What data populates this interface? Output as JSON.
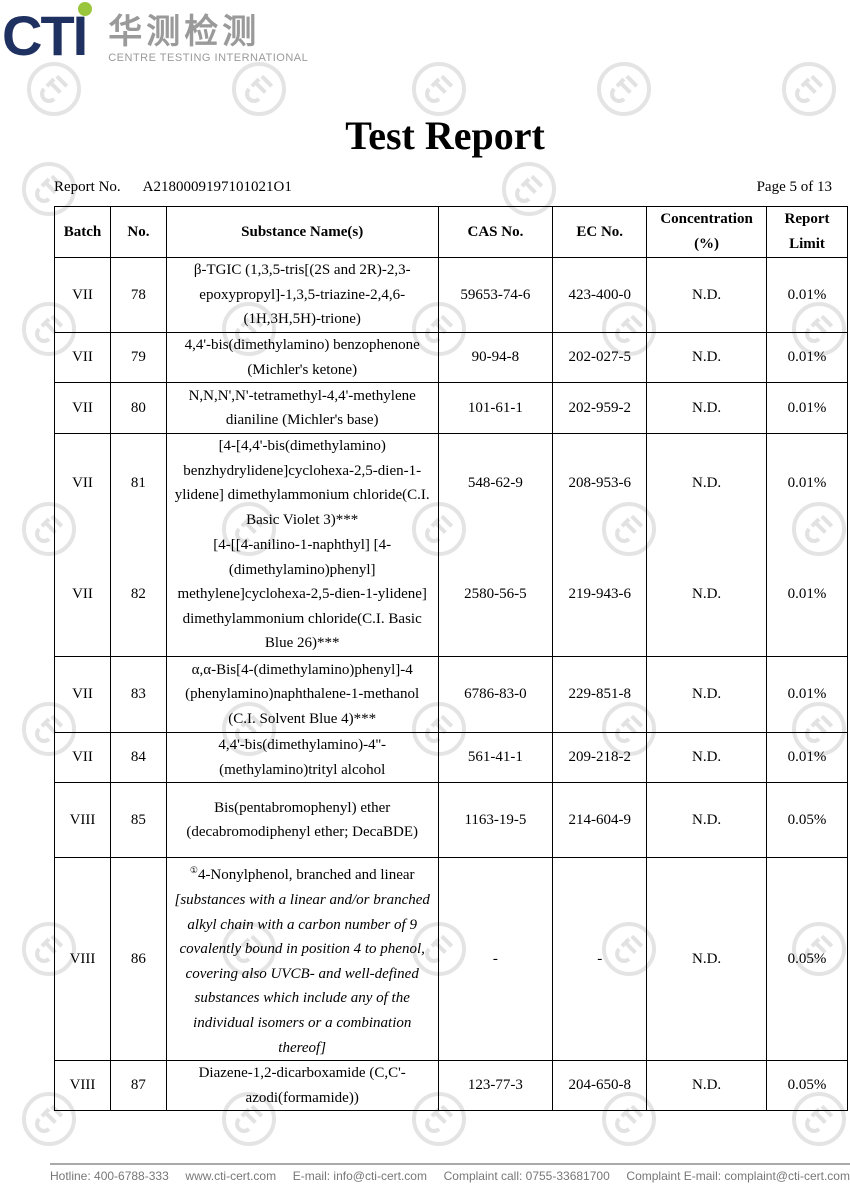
{
  "logo": {
    "mark": "CTI",
    "chinese": "华测检测",
    "english": "CENTRE TESTING INTERNATIONAL",
    "brand_color": "#1f3161",
    "dot_color": "#9ac63c"
  },
  "title": "Test Report",
  "report_no_label": "Report No.",
  "report_no": "A2180009197101021O1",
  "page": "Page 5 of 13",
  "headers": [
    "Batch",
    "No.",
    "Substance Name(s)",
    "CAS No.",
    "EC No.",
    "Concentration (%)",
    "Report Limit"
  ],
  "rows": [
    {
      "batch": "VII",
      "no": "78",
      "name": "β-TGIC (1,3,5-tris[(2S and 2R)-2,3-epoxypropyl]-1,3,5-triazine-2,4,6- (1H,3H,5H)-trione)",
      "cas": "59653-74-6",
      "ec": "423-400-0",
      "conc": "N.D.",
      "limit": "0.01%"
    },
    {
      "batch": "VII",
      "no": "79",
      "name": "4,4'-bis(dimethylamino) benzophenone (Michler's ketone)",
      "cas": "90-94-8",
      "ec": "202-027-5",
      "conc": "N.D.",
      "limit": "0.01%"
    },
    {
      "batch": "VII",
      "no": "80",
      "name": "N,N,N',N'-tetramethyl-4,4'-methylene dianiline (Michler's base)",
      "cas": "101-61-1",
      "ec": "202-959-2",
      "conc": "N.D.",
      "limit": "0.01%"
    },
    {
      "batch": "VII",
      "no": "81",
      "name": "[4-[4,4'-bis(dimethylamino) benzhydrylidene]cyclohexa-2,5-dien-1-ylidene] dimethylammonium chloride(C.I. Basic Violet 3)***",
      "cas": "548-62-9",
      "ec": "208-953-6",
      "conc": "N.D.",
      "limit": "0.01%"
    },
    {
      "batch": "VII",
      "no": "82",
      "name": "[4-[[4-anilino-1-naphthyl] [4-(dimethylamino)phenyl] methylene]cyclohexa-2,5-dien-1-ylidene] dimethylammonium chloride(C.I. Basic Blue 26)***",
      "cas": "2580-56-5",
      "ec": "219-943-6",
      "conc": "N.D.",
      "limit": "0.01%"
    },
    {
      "batch": "VII",
      "no": "83",
      "name": "α,α-Bis[4-(dimethylamino)phenyl]-4 (phenylamino)naphthalene-1-methanol (C.I. Solvent Blue 4)***",
      "cas": "6786-83-0",
      "ec": "229-851-8",
      "conc": "N.D.",
      "limit": "0.01%"
    },
    {
      "batch": "VII",
      "no": "84",
      "name": "4,4'-bis(dimethylamino)-4''-(methylamino)trityl alcohol",
      "cas": "561-41-1",
      "ec": "209-218-2",
      "conc": "N.D.",
      "limit": "0.01%"
    },
    {
      "batch": "VIII",
      "no": "85",
      "name": "Bis(pentabromophenyl) ether (decabromodiphenyl ether; DecaBDE)",
      "cas": "1163-19-5",
      "ec": "214-604-9",
      "conc": "N.D.",
      "limit": "0.05%"
    },
    {
      "batch": "VIII",
      "no": "86",
      "note_mark": "①",
      "name": "4-Nonylphenol, branched and linear",
      "name_italic": "[substances with a linear and/or branched alkyl chain with a carbon number of 9 covalently bound in position 4 to phenol, covering also UVCB- and well-defined substances which include any of the individual isomers or a combination thereof]",
      "cas": "-",
      "ec": "-",
      "conc": "N.D.",
      "limit": "0.05%"
    },
    {
      "batch": "VIII",
      "no": "87",
      "name": "Diazene-1,2-dicarboxamide (C,C'-azodi(formamide))",
      "cas": "123-77-3",
      "ec": "204-650-8",
      "conc": "N.D.",
      "limit": "0.05%"
    }
  ],
  "footer": {
    "hotline": "Hotline: 400-6788-333",
    "web": "www.cti-cert.com",
    "email": "E-mail: info@cti-cert.com",
    "complaint_call": "Complaint call: 0755-33681700",
    "complaint_email": "Complaint E-mail: complaint@cti-cert.com"
  }
}
